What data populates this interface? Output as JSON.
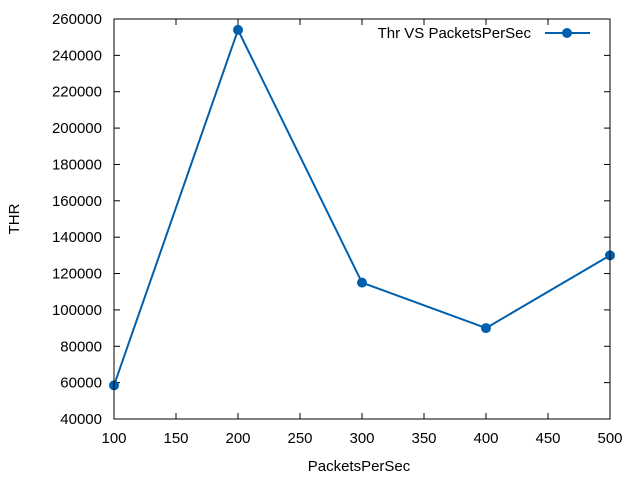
{
  "chart_data": {
    "type": "line",
    "title": "",
    "xlabel": "PacketsPerSec",
    "ylabel": "THR",
    "xlim": [
      100,
      500
    ],
    "ylim": [
      40000,
      260000
    ],
    "x_ticks": [
      100,
      150,
      200,
      250,
      300,
      350,
      400,
      450,
      500
    ],
    "y_ticks": [
      40000,
      60000,
      80000,
      100000,
      120000,
      140000,
      160000,
      180000,
      200000,
      220000,
      240000,
      260000
    ],
    "grid": false,
    "legend_position": "top-right",
    "series": [
      {
        "name": "Thr VS PacketsPerSec",
        "color": "#0060ad",
        "marker": "circle",
        "x": [
          100,
          200,
          300,
          400,
          500
        ],
        "values": [
          58500,
          254000,
          115000,
          90000,
          130000
        ]
      }
    ]
  }
}
